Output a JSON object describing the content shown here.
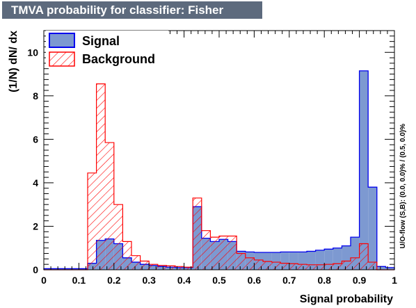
{
  "title": "TMVA probability for classifier: Fisher",
  "side_note": "U/O-flow (S,B): (0.0, 0.0)% / (0.5, 0.0)%",
  "colors": {
    "signal_fill": "#7d99d1",
    "signal_line": "#0000ee",
    "background_hatch": "#ff0000",
    "title_bg": "#5d6a7d"
  },
  "chart_data": {
    "type": "bar",
    "title": "TMVA probability for classifier: Fisher",
    "xlabel": "Signal probability",
    "ylabel": "(1/N) dN/ dx",
    "xlim": [
      0,
      1
    ],
    "ylim": [
      0,
      11
    ],
    "xticks": [
      "0",
      "0.1",
      "0.2",
      "0.3",
      "0.4",
      "0.5",
      "0.6",
      "0.7",
      "0.8",
      "0.9",
      "1"
    ],
    "yticks": [
      "0",
      "2",
      "4",
      "6",
      "8",
      "10"
    ],
    "legend_position": "top-left",
    "bin_edges": [
      0,
      0.025,
      0.05,
      0.075,
      0.1,
      0.125,
      0.15,
      0.175,
      0.2,
      0.225,
      0.25,
      0.275,
      0.3,
      0.325,
      0.35,
      0.375,
      0.4,
      0.425,
      0.45,
      0.475,
      0.5,
      0.525,
      0.55,
      0.575,
      0.6,
      0.625,
      0.65,
      0.675,
      0.7,
      0.725,
      0.75,
      0.775,
      0.8,
      0.825,
      0.85,
      0.875,
      0.9,
      0.925,
      0.95,
      0.975,
      1
    ],
    "series": [
      {
        "name": "Signal",
        "style": "filled",
        "values": [
          0.05,
          0.05,
          0.05,
          0.05,
          0.05,
          0.3,
          1.35,
          1.42,
          1.2,
          0.55,
          0.35,
          0.25,
          0.2,
          0.15,
          0.12,
          0.1,
          0.1,
          2.9,
          1.45,
          1.3,
          1.4,
          1.3,
          0.85,
          0.82,
          0.8,
          0.8,
          0.8,
          0.82,
          0.82,
          0.82,
          0.85,
          0.9,
          0.95,
          1.0,
          1.1,
          1.5,
          9.15,
          3.8,
          0.15,
          0.1,
          0.1
        ]
      },
      {
        "name": "Background",
        "style": "hatched",
        "values": [
          0,
          0,
          0,
          0,
          0,
          4.45,
          8.55,
          5.85,
          3.0,
          1.3,
          0.65,
          0.4,
          0.25,
          0.2,
          0.18,
          0.15,
          0.12,
          3.3,
          1.8,
          1.5,
          1.55,
          1.55,
          0.75,
          0.55,
          0.45,
          0.38,
          0.35,
          0.3,
          0.28,
          0.25,
          0.23,
          0.23,
          0.25,
          0.28,
          0.4,
          0.55,
          1.2,
          0.35,
          0,
          0,
          0
        ]
      }
    ]
  }
}
